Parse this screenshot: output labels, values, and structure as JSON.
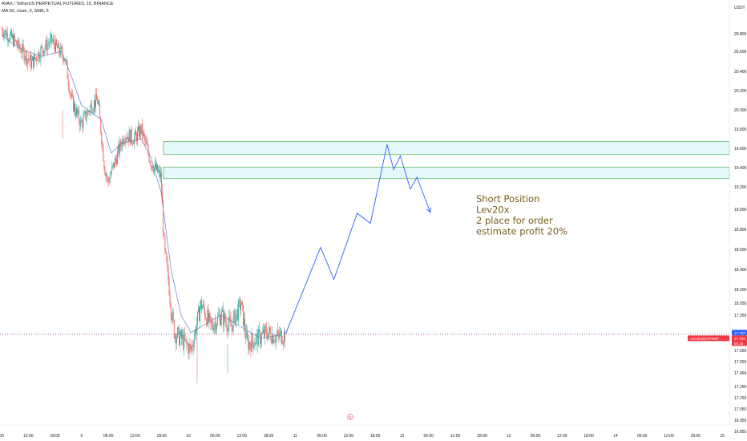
{
  "header": {
    "symbol_line": "AVAX / TetherUS PERPETUAL FUTURES, 15, BINANCE",
    "indicator_line": "MA 50, close, 0, SMA, 5"
  },
  "chart_data": {
    "type": "candlestick",
    "currency_label": "USDT",
    "ylim": [
      16.85,
      20.95
    ],
    "y_ticks": [
      "20.800",
      "20.600",
      "20.400",
      "20.200",
      "20.000",
      "19.800",
      "19.600",
      "19.400",
      "19.200",
      "19.000",
      "18.800",
      "18.600",
      "18.400",
      "18.200",
      "18.050",
      "17.950",
      "17.750",
      "17.650",
      "17.550",
      "17.450",
      "17.250",
      "17.150",
      "17.050",
      "16.950",
      "16.855"
    ],
    "y_tick_values": [
      20.8,
      20.6,
      20.4,
      20.2,
      20.0,
      19.8,
      19.6,
      19.4,
      19.2,
      19.0,
      18.8,
      18.6,
      18.4,
      18.2,
      18.05,
      17.95,
      17.75,
      17.65,
      17.55,
      17.45,
      17.25,
      17.15,
      17.05,
      16.95,
      16.855
    ],
    "x_ticks": [
      "00",
      "12:00",
      "18:00",
      "9",
      "06:00",
      "12:00",
      "18:00",
      "10",
      "06:00",
      "12:00",
      "18:00",
      "11",
      "06:00",
      "12:00",
      "18:00",
      "12",
      "06:00",
      "12:00",
      "18:00",
      "13",
      "06:00",
      "12:00",
      "18:00",
      "14",
      "06:00",
      "12:00",
      "18:00",
      "15"
    ],
    "price_lines": [
      17.792,
      17.789
    ],
    "price_labels": {
      "upper": "17.792",
      "symbol": "AVAXUSDTPERP",
      "last": "17.789",
      "countdown": "04:18"
    },
    "zones": [
      {
        "low": 19.535,
        "high": 19.67
      },
      {
        "low": 19.285,
        "high": 19.405
      }
    ],
    "projection": [
      {
        "t": "11 13:30",
        "y": 17.79
      },
      {
        "t": "12 00:00",
        "y": 18.62
      },
      {
        "t": "12 04:00",
        "y": 18.3
      },
      {
        "t": "12 11:00",
        "y": 18.96
      },
      {
        "t": "12 15:00",
        "y": 18.86
      },
      {
        "t": "12 20:00",
        "y": 19.64
      },
      {
        "t": "12 22:00",
        "y": 19.38
      },
      {
        "t": "13 00:00",
        "y": 19.52
      },
      {
        "t": "13 03:00",
        "y": 19.18
      },
      {
        "t": "13 05:00",
        "y": 19.3
      },
      {
        "t": "13 09:00",
        "y": 18.97
      }
    ],
    "annotation": [
      "Short Position",
      "Lev20x",
      "2 place for order",
      "estimate profit 20%"
    ],
    "sma_path": [
      {
        "t": "8 00:00",
        "y": 20.78
      },
      {
        "t": "8 06:00",
        "y": 20.62
      },
      {
        "t": "8 12:00",
        "y": 20.55
      },
      {
        "t": "8 18:00",
        "y": 20.6
      },
      {
        "t": "8 21:00",
        "y": 20.35
      },
      {
        "t": "9 00:00",
        "y": 20.05
      },
      {
        "t": "9 03:00",
        "y": 19.97
      },
      {
        "t": "9 06:00",
        "y": 19.9
      },
      {
        "t": "9 09:00",
        "y": 19.55
      },
      {
        "t": "9 12:00",
        "y": 19.65
      },
      {
        "t": "9 18:00",
        "y": 19.7
      },
      {
        "t": "9 21:00",
        "y": 19.5
      },
      {
        "t": "10 00:00",
        "y": 19.15
      },
      {
        "t": "10 03:00",
        "y": 18.4
      },
      {
        "t": "10 06:00",
        "y": 17.95
      },
      {
        "t": "10 09:00",
        "y": 17.8
      },
      {
        "t": "10 12:00",
        "y": 17.85
      },
      {
        "t": "10 18:00",
        "y": 17.95
      },
      {
        "t": "11 00:00",
        "y": 17.85
      },
      {
        "t": "11 06:00",
        "y": 17.75
      },
      {
        "t": "11 12:00",
        "y": 17.78
      }
    ],
    "price_path": [
      {
        "t": "8 00:00",
        "y": 20.85
      },
      {
        "t": "8 03:00",
        "y": 20.75
      },
      {
        "t": "8 06:00",
        "y": 20.62
      },
      {
        "t": "8 09:00",
        "y": 20.48
      },
      {
        "t": "8 12:00",
        "y": 20.62
      },
      {
        "t": "8 15:00",
        "y": 20.72
      },
      {
        "t": "8 17:00",
        "y": 20.62
      },
      {
        "t": "8 19:00",
        "y": 20.55
      },
      {
        "t": "8 21:00",
        "y": 20.1
      },
      {
        "t": "9 00:00",
        "y": 19.85
      },
      {
        "t": "9 03:00",
        "y": 20.05
      },
      {
        "t": "9 05:00",
        "y": 20.1
      },
      {
        "t": "9 07:00",
        "y": 19.4
      },
      {
        "t": "9 08:00",
        "y": 19.25
      },
      {
        "t": "9 10:00",
        "y": 19.45
      },
      {
        "t": "9 13:00",
        "y": 19.75
      },
      {
        "t": "9 16:00",
        "y": 19.7
      },
      {
        "t": "9 18:00",
        "y": 19.8
      },
      {
        "t": "9 21:00",
        "y": 19.45
      },
      {
        "t": "10 00:00",
        "y": 19.3
      },
      {
        "t": "10 01:00",
        "y": 18.6
      },
      {
        "t": "10 02:00",
        "y": 18.35
      },
      {
        "t": "10 03:00",
        "y": 18.0
      },
      {
        "t": "10 04:00",
        "y": 17.8
      },
      {
        "t": "10 06:00",
        "y": 17.75
      },
      {
        "t": "10 09:00",
        "y": 17.65
      },
      {
        "t": "10 12:00",
        "y": 18.05
      },
      {
        "t": "10 15:00",
        "y": 17.85
      },
      {
        "t": "10 18:00",
        "y": 17.95
      },
      {
        "t": "10 21:00",
        "y": 17.85
      },
      {
        "t": "11 00:00",
        "y": 18.05
      },
      {
        "t": "11 02:00",
        "y": 17.7
      },
      {
        "t": "11 05:00",
        "y": 17.75
      },
      {
        "t": "11 08:00",
        "y": 17.8
      },
      {
        "t": "11 11:00",
        "y": 17.76
      },
      {
        "t": "11 13:30",
        "y": 17.79
      }
    ],
    "event_marker": "E",
    "grid": false
  }
}
